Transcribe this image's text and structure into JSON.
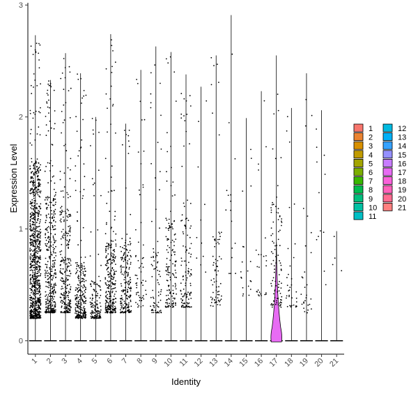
{
  "chart_data": {
    "type": "violin",
    "xlabel": "Identity",
    "ylabel": "Expression Level",
    "ylim": [
      -0.12,
      3.02
    ],
    "y_ticks": [
      0,
      1,
      2,
      3
    ],
    "categories": [
      "1",
      "2",
      "3",
      "4",
      "5",
      "6",
      "7",
      "8",
      "9",
      "10",
      "11",
      "12",
      "13",
      "14",
      "15",
      "16",
      "17",
      "18",
      "19",
      "20",
      "21"
    ],
    "colors": [
      "#F8766D",
      "#EA8331",
      "#D89000",
      "#C09B00",
      "#A3A500",
      "#7CAE00",
      "#39B600",
      "#00BB4E",
      "#00BF7D",
      "#00C1A3",
      "#00BFC4",
      "#00BAE0",
      "#00B0F6",
      "#35A2FF",
      "#9590FF",
      "#C77CFF",
      "#E76BF3",
      "#FA62DB",
      "#FF62BC",
      "#FF6C91",
      "#FF7F7F"
    ],
    "max_values": [
      2.73,
      2.33,
      2.57,
      2.39,
      2.0,
      2.74,
      1.94,
      2.42,
      2.63,
      2.58,
      2.38,
      2.27,
      2.55,
      2.91,
      1.99,
      2.23,
      2.55,
      2.08,
      2.39,
      2.06,
      0.98
    ],
    "dense_points": [
      800,
      300,
      220,
      240,
      120,
      250,
      180,
      40,
      60,
      120,
      100,
      5,
      60,
      8,
      12,
      15,
      80,
      25,
      20,
      5,
      2
    ],
    "dense_range": [
      [
        0.2,
        1.6
      ],
      [
        0.25,
        1.3
      ],
      [
        0.25,
        1.2
      ],
      [
        0.2,
        0.7
      ],
      [
        0.2,
        0.55
      ],
      [
        0.25,
        0.9
      ],
      [
        0.25,
        0.9
      ],
      [
        0.3,
        0.9
      ],
      [
        0.25,
        0.9
      ],
      [
        0.3,
        1.1
      ],
      [
        0.3,
        1.1
      ],
      [
        0.6,
        1.3
      ],
      [
        0.3,
        1.0
      ],
      [
        0.6,
        1.4
      ],
      [
        0.4,
        0.9
      ],
      [
        0.4,
        0.9
      ],
      [
        0.3,
        1.3
      ],
      [
        0.3,
        0.6
      ],
      [
        0.25,
        0.7
      ],
      [
        0.5,
        1.0
      ],
      [
        0.6,
        0.9
      ]
    ],
    "sparse_points": [
      90,
      70,
      60,
      35,
      25,
      45,
      20,
      18,
      22,
      25,
      30,
      6,
      10,
      8,
      8,
      10,
      15,
      10,
      8,
      7,
      2
    ],
    "violin_widths": [
      0,
      0,
      0,
      0,
      0,
      0,
      0,
      0,
      0,
      0,
      0,
      0,
      0,
      0,
      0,
      0,
      0.9,
      0,
      0,
      0,
      0
    ],
    "legend_columns": [
      [
        "1",
        "2",
        "3",
        "4",
        "5",
        "6",
        "7",
        "8",
        "9",
        "10",
        "11"
      ],
      [
        "12",
        "13",
        "14",
        "15",
        "16",
        "17",
        "18",
        "19",
        "20",
        "21"
      ]
    ]
  }
}
